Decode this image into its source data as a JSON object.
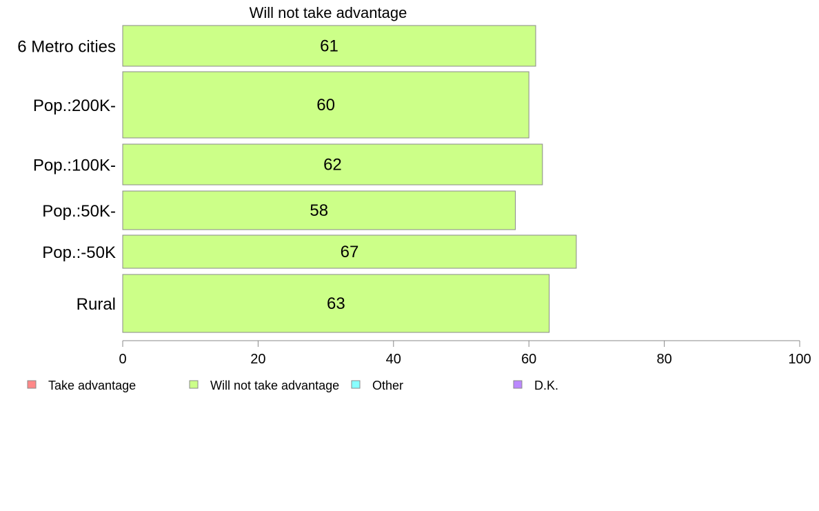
{
  "chart_data": {
    "type": "bar",
    "orientation": "horizontal",
    "title": "Will not take advantage",
    "xlabel": "",
    "ylabel": "",
    "xlim": [
      0,
      100
    ],
    "xticks": [
      0,
      20,
      40,
      60,
      80,
      100
    ],
    "grid": false,
    "categories": [
      "6 Metro cities",
      "Pop.:200K-",
      "Pop.:100K-",
      "Pop.:50K-",
      "Pop.:-50K",
      "Rural"
    ],
    "series": [
      {
        "name": "Will not take advantage",
        "values": [
          61,
          60,
          62,
          58,
          67,
          63
        ],
        "color": "#ccff88"
      }
    ],
    "legend": {
      "position": "bottom",
      "items": [
        {
          "label": "Take advantage",
          "color": "#ff8888"
        },
        {
          "label": "Will not take advantage",
          "color": "#ccff88"
        },
        {
          "label": "Other",
          "color": "#88ffff"
        },
        {
          "label": "D.K.",
          "color": "#bb88ff"
        }
      ]
    }
  }
}
